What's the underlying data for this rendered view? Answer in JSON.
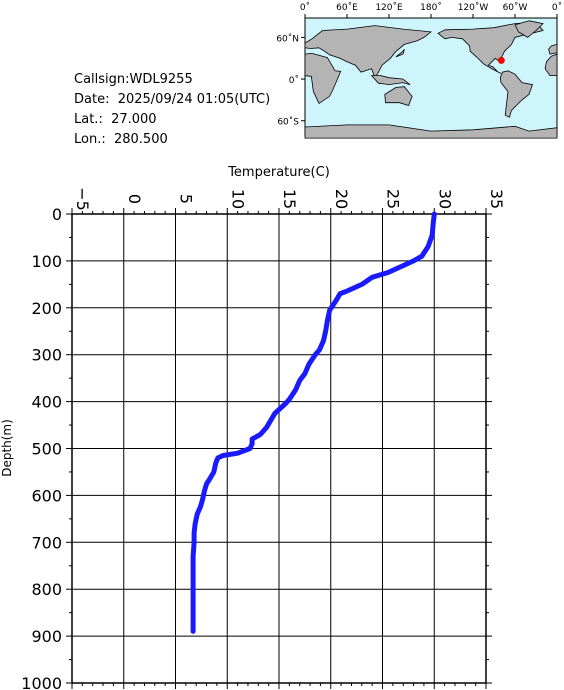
{
  "info": {
    "callsign": "Callsign:WDL9255",
    "date": "Date:  2025/09/24 01:05(UTC)",
    "lat": "Lat.:  27.000",
    "lon": "Lon.:  280.500"
  },
  "map": {
    "lon_labels": [
      "0˚",
      "60˚E",
      "120˚E",
      "180˚",
      "120˚W",
      "60˚W",
      "0˚"
    ],
    "lat_labels": [
      "60˚N",
      "0˚",
      "60˚S"
    ],
    "ocean_color": "#cdf5fb",
    "land_color": "#b4b4b4",
    "marker_color": "#ff0000",
    "marker_lon": 280.5,
    "marker_lat": 27.0
  },
  "chart_data": {
    "type": "line",
    "title": "",
    "xlabel": "Temperature(C)",
    "ylabel": "Depth(m)",
    "xlim": [
      -5,
      35
    ],
    "ylim": [
      0,
      1000
    ],
    "y_inverted": true,
    "x_ticks": [
      -5,
      0,
      5,
      10,
      15,
      20,
      25,
      30,
      35
    ],
    "y_ticks": [
      0,
      100,
      200,
      300,
      400,
      500,
      600,
      700,
      800,
      900,
      1000
    ],
    "grid": true,
    "line_color": "#1a1aff",
    "series": [
      {
        "temperature": [
          30.0,
          29.9,
          29.8,
          29.4,
          28.8,
          28.0,
          27.0,
          25.5,
          24.0,
          23.0,
          21.5,
          20.9,
          20.5,
          20.2,
          19.9,
          19.7,
          19.5,
          19.3,
          18.9,
          18.5,
          17.9,
          17.5,
          17.0,
          16.6,
          16.0,
          15.6,
          15.1,
          14.6,
          14.2,
          13.8,
          13.2,
          12.8,
          12.4,
          12.4,
          12.2,
          11.0,
          9.6,
          9.1,
          8.9,
          8.7,
          8.3,
          8.0,
          7.8,
          7.6,
          7.4,
          7.1,
          6.9,
          6.8,
          6.8,
          6.7,
          6.7,
          6.7,
          6.7,
          6.7,
          6.7
        ],
        "depth": [
          0,
          20,
          45,
          70,
          90,
          100,
          110,
          125,
          135,
          150,
          165,
          170,
          185,
          195,
          205,
          225,
          250,
          270,
          290,
          300,
          320,
          340,
          355,
          375,
          395,
          405,
          415,
          425,
          440,
          455,
          470,
          475,
          480,
          490,
          500,
          510,
          515,
          520,
          530,
          550,
          565,
          575,
          590,
          610,
          625,
          640,
          660,
          680,
          700,
          730,
          760,
          800,
          840,
          870,
          890
        ]
      }
    ]
  }
}
